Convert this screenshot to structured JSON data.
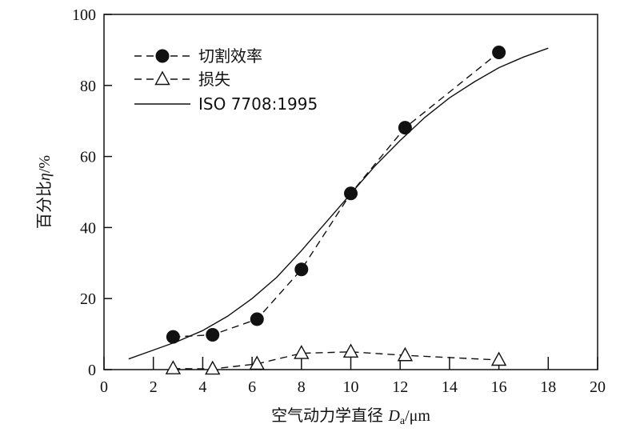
{
  "chart_data": {
    "type": "line",
    "xlabel_prefix": "空气动力学直径 ",
    "xlabel_var": "D",
    "xlabel_sub": "a",
    "xlabel_unit": "/μm",
    "ylabel_prefix": "百分比",
    "ylabel_var": "η",
    "ylabel_unit": "/%",
    "xlim": [
      0,
      20
    ],
    "ylim": [
      0,
      100
    ],
    "xticks": [
      0,
      2,
      4,
      6,
      8,
      10,
      12,
      14,
      16,
      18,
      20
    ],
    "yticks": [
      0,
      20,
      40,
      60,
      80,
      100
    ],
    "legend_position": "top-left",
    "grid": false,
    "series": [
      {
        "name": "切割效率",
        "style": "dashed",
        "marker": "filled-circle",
        "x": [
          2.8,
          4.4,
          6.2,
          8.0,
          10.0,
          12.2,
          16.0
        ],
        "y": [
          9.2,
          9.8,
          14.2,
          28.2,
          49.6,
          68.1,
          89.3
        ]
      },
      {
        "name": "损失",
        "style": "dashed",
        "marker": "open-triangle",
        "x": [
          2.8,
          4.4,
          6.2,
          8.0,
          10.0,
          12.2,
          16.0
        ],
        "y": [
          0.3,
          0.2,
          1.6,
          4.6,
          5.0,
          4.0,
          2.7
        ]
      },
      {
        "name": "ISO 7708:1995",
        "style": "solid",
        "marker": "none",
        "x": [
          1.0,
          2.0,
          3.0,
          4.0,
          5.0,
          6.0,
          7.0,
          8.0,
          9.0,
          10.0,
          11.0,
          12.0,
          13.0,
          14.0,
          15.0,
          16.0,
          17.0,
          18.0
        ],
        "y": [
          3.0,
          5.5,
          8.0,
          11.0,
          15.0,
          20.0,
          26.0,
          33.5,
          41.5,
          49.5,
          57.5,
          64.5,
          71.0,
          76.5,
          81.0,
          85.0,
          88.0,
          90.5
        ]
      }
    ]
  }
}
